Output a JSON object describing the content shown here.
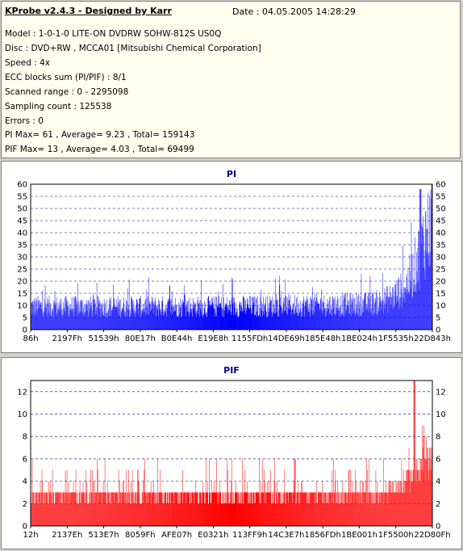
{
  "header": {
    "title": "KProbe v2.4.3 - Designed by Karr",
    "date": "Date : 04.05.2005 14:28:29"
  },
  "info_lines": [
    "Model : 1-0-1-0 LITE-ON DVDRW SOHW-812S  US0Q",
    "Disc : DVD+RW , MCCA01 [Mitsubishi Chemical Corporation]",
    "Speed : 4x",
    "ECC blocks sum (PI/PIF) : 8/1",
    "Scanned range : 0 - 2295098",
    "Sampling count : 125538",
    "Errors : 0",
    "PI Max= 61 , Average= 9.23 , Total= 159143",
    "PIF Max= 13 , Average= 4.03 , Total= 69499"
  ],
  "colors": {
    "pi": "#0000ff",
    "pif": "#ff0000",
    "title": "#000080",
    "grid": "#000080"
  },
  "chart_data": [
    {
      "type": "area",
      "title": "PI",
      "ylim": [
        0,
        60
      ],
      "yticks": [
        0,
        5,
        10,
        15,
        20,
        25,
        30,
        35,
        40,
        45,
        50,
        55,
        60
      ],
      "xtick_labels": [
        "86h",
        "2197Fh",
        "51539h",
        "80E17h",
        "B0E44h",
        "E19E8h",
        "1155FDh",
        "14DE69h",
        "185E48h",
        "1BE024h",
        "1F5535h",
        "22D843h"
      ],
      "grid": true,
      "profile": {
        "x": [
          0,
          0.5,
          0.83,
          0.87,
          0.9,
          0.93,
          0.95,
          0.97,
          0.985,
          1.0
        ],
        "y": [
          10,
          10,
          11,
          12,
          14,
          18,
          24,
          34,
          42,
          46
        ],
        "peak": {
          "x": 0.97,
          "y": 58
        }
      }
    },
    {
      "type": "area",
      "title": "PIF",
      "ylim": [
        0,
        13
      ],
      "yticks": [
        0,
        2,
        4,
        6,
        8,
        10,
        12
      ],
      "xtick_labels": [
        "12h",
        "2137Eh",
        "513E7h",
        "8059Fh",
        "AFE07h",
        "E0321h",
        "113FF9h",
        "14C3E7h",
        "1856FDh",
        "1BE001h",
        "1F5500h",
        "22D80Fh"
      ],
      "grid": true,
      "profile": {
        "x": [
          0,
          0.85,
          0.9,
          0.93,
          0.96,
          0.98,
          1.0
        ],
        "y": [
          3,
          3,
          3.5,
          4,
          5,
          6,
          6
        ],
        "peak": {
          "x": 0.955,
          "y": 13
        }
      }
    }
  ]
}
